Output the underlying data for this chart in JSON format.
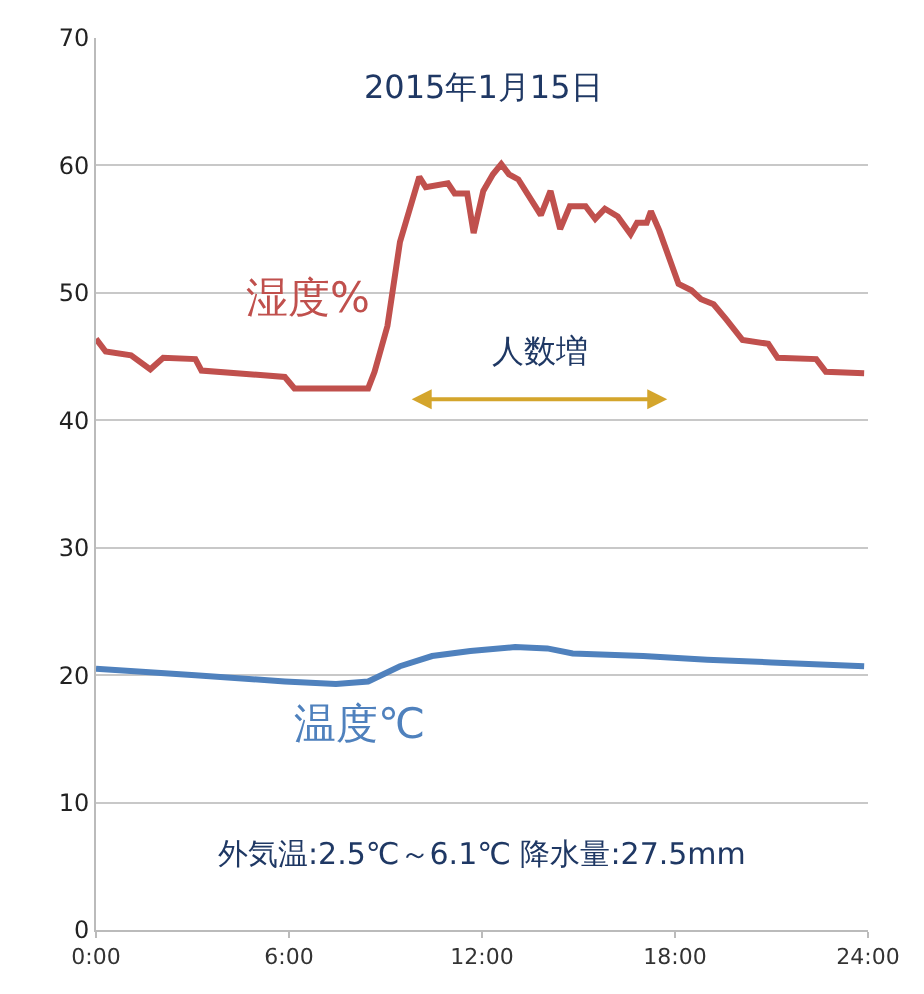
{
  "chart_data": {
    "type": "line",
    "title": "2015年1月15日",
    "annotations": [
      "人数増",
      "外気温:2.5℃～6.1℃ 降水量:27.5mm"
    ],
    "series": [
      {
        "name": "湿度%",
        "color": "#c0504d",
        "x": [
          0,
          0.3,
          1.09,
          1.69,
          2.09,
          3.09,
          3.28,
          5.87,
          6.17,
          8.46,
          8.66,
          9.06,
          9.45,
          10.05,
          10.25,
          10.94,
          11.15,
          11.54,
          11.74,
          12.04,
          12.34,
          12.6,
          12.84,
          13.13,
          13.83,
          14.13,
          14.43,
          14.73,
          15.22,
          15.52,
          15.82,
          16.22,
          16.62,
          16.82,
          17.12,
          17.25,
          17.51,
          18.11,
          18.51,
          18.81,
          19.2,
          19.6,
          20.1,
          20.9,
          21.19,
          22.39,
          22.69,
          23.88
        ],
        "values": [
          46.4,
          45.4,
          45.1,
          44.0,
          44.9,
          44.8,
          43.9,
          43.4,
          42.5,
          42.5,
          43.8,
          47.4,
          54.0,
          59.1,
          58.3,
          58.6,
          57.8,
          57.8,
          54.7,
          58.0,
          59.3,
          60.1,
          59.3,
          58.9,
          56.1,
          58.0,
          55.0,
          56.8,
          56.8,
          55.8,
          56.6,
          56.0,
          54.6,
          55.5,
          55.5,
          56.4,
          54.9,
          50.7,
          50.2,
          49.5,
          49.1,
          47.9,
          46.3,
          46.0,
          44.9,
          44.8,
          43.8,
          43.7
        ]
      },
      {
        "name": "温度℃",
        "color": "#4f81bd",
        "x": [
          0,
          3.09,
          5.87,
          7.46,
          8.46,
          9.45,
          10.45,
          11.64,
          13.03,
          14.03,
          14.82,
          17.01,
          19.0,
          21.0,
          23.88
        ],
        "values": [
          20.5,
          20.0,
          19.5,
          19.3,
          19.5,
          20.7,
          21.5,
          21.9,
          22.2,
          22.1,
          21.7,
          21.5,
          21.2,
          21.0,
          20.7
        ]
      }
    ],
    "xlim": [
      0,
      24
    ],
    "xticks": [
      {
        "value": 0,
        "label": "0:00"
      },
      {
        "value": 6,
        "label": "6:00"
      },
      {
        "value": 12,
        "label": "12:00"
      },
      {
        "value": 18,
        "label": "18:00"
      },
      {
        "value": 24,
        "label": "24:00"
      }
    ],
    "ylim": [
      0,
      70
    ],
    "yticks": [
      0,
      10,
      20,
      30,
      40,
      50,
      60,
      70
    ],
    "grid": "y",
    "legend": false,
    "marker": "none",
    "line_style": "solid"
  }
}
